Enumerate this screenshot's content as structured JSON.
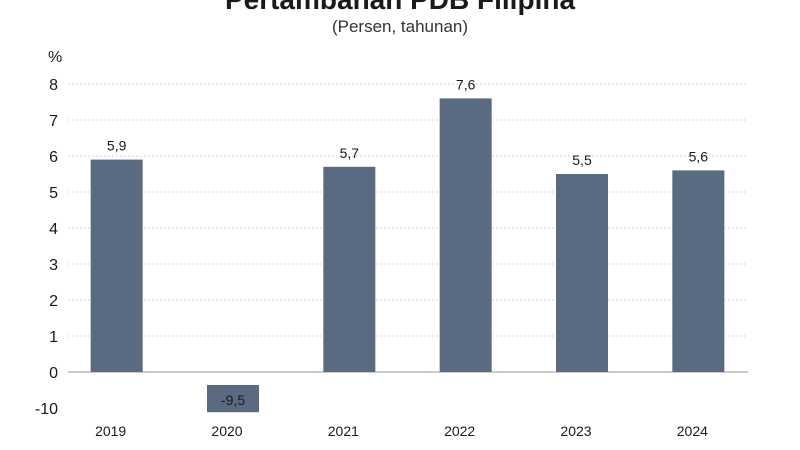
{
  "chart_data": {
    "type": "bar",
    "title": "Pertambahan PDB Filipina",
    "subtitle": "(Persen, tahunan)",
    "ylabel": "%",
    "xlabel": "",
    "categories": [
      "2019",
      "2020",
      "2021",
      "2022",
      "2023",
      "2024"
    ],
    "values": [
      5.9,
      -9.5,
      5.7,
      7.6,
      5.5,
      5.6
    ],
    "value_labels": [
      "5,9",
      "-9,5",
      "5,7",
      "7,6",
      "5,5",
      "5,6"
    ],
    "yticks": [
      -10,
      0,
      1,
      2,
      3,
      4,
      5,
      6,
      7,
      8
    ],
    "ytick_labels": [
      "-10",
      "0",
      "1",
      "2",
      "3",
      "4",
      "5",
      "6",
      "7",
      "8"
    ],
    "ylim": [
      -10,
      8
    ],
    "grid": true,
    "legend": "none",
    "colors": {
      "bar": "#5a6a80",
      "grid": "#c8c8c8",
      "baseline": "#999999"
    }
  }
}
